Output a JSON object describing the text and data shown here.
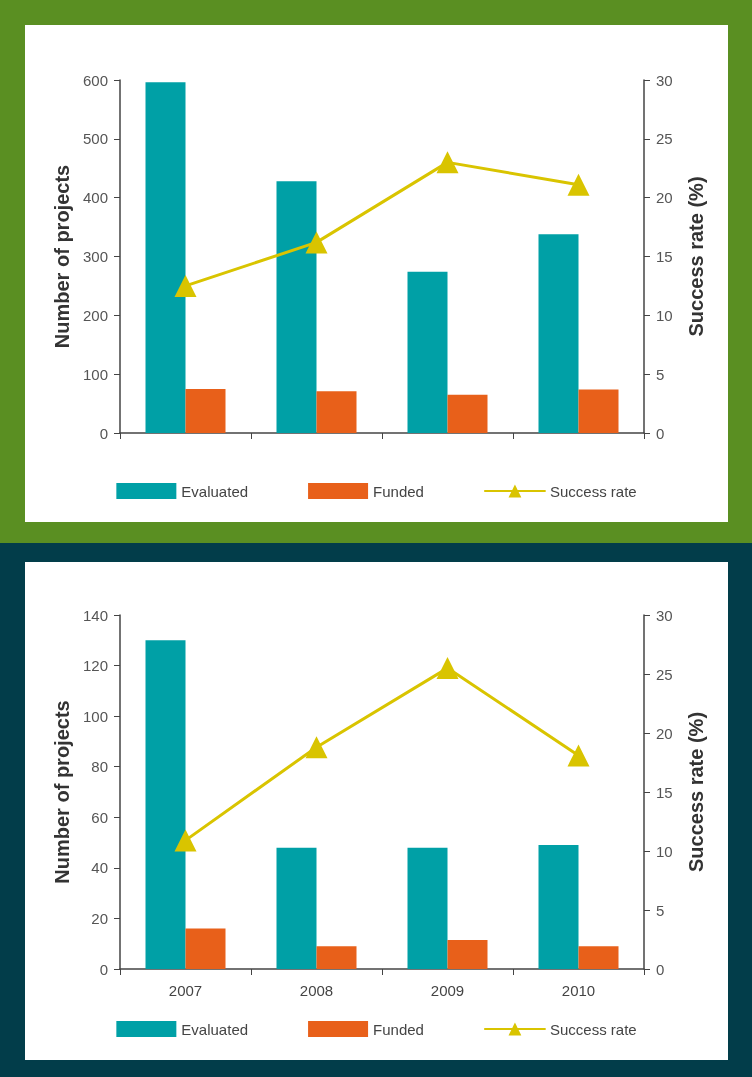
{
  "chart_data": [
    {
      "type": "bar",
      "categories": [
        "2007",
        "2008",
        "2009",
        "2010"
      ],
      "ylabel": "Number of projects",
      "y2label": "Success rate (%)",
      "series": [
        {
          "name": "Evaluated",
          "color": "#00a0a6",
          "values": [
            596,
            428,
            274,
            338
          ]
        },
        {
          "name": "Funded",
          "color": "#e8601a",
          "values": [
            75,
            71,
            65,
            74
          ]
        },
        {
          "name": "Success rate",
          "type": "line",
          "axis": "y2",
          "color": "#d9c400",
          "values": [
            12.5,
            16.2,
            23.0,
            21.1
          ]
        }
      ],
      "ylim": [
        0,
        600
      ],
      "yticks": [
        0,
        100,
        200,
        300,
        400,
        500,
        600
      ],
      "y2lim": [
        0,
        30
      ],
      "y2ticks": [
        0,
        5,
        10,
        15,
        20,
        25,
        30
      ],
      "tick_labels": "y",
      "legend": "bottom",
      "marker": "triangle",
      "grid": false
    },
    {
      "type": "bar",
      "categories": [
        "2007",
        "2008",
        "2009",
        "2010"
      ],
      "ylabel": "Number of projects",
      "y2label": "Success rate (%)",
      "series": [
        {
          "name": "Evaluated",
          "color": "#00a0a6",
          "values": [
            130,
            48,
            48,
            49
          ]
        },
        {
          "name": "Funded",
          "color": "#e8601a",
          "values": [
            16,
            9,
            11.5,
            9
          ]
        },
        {
          "name": "Success rate",
          "type": "line",
          "axis": "y2",
          "color": "#d9c400",
          "values": [
            10.9,
            18.8,
            25.5,
            18.1
          ]
        }
      ],
      "ylim": [
        0,
        140
      ],
      "yticks": [
        0,
        20,
        40,
        60,
        80,
        100,
        120,
        140
      ],
      "y2lim": [
        0,
        30
      ],
      "y2ticks": [
        0,
        5,
        10,
        15,
        20,
        25,
        30
      ],
      "legend": "bottom",
      "marker": "triangle",
      "grid": false
    }
  ]
}
